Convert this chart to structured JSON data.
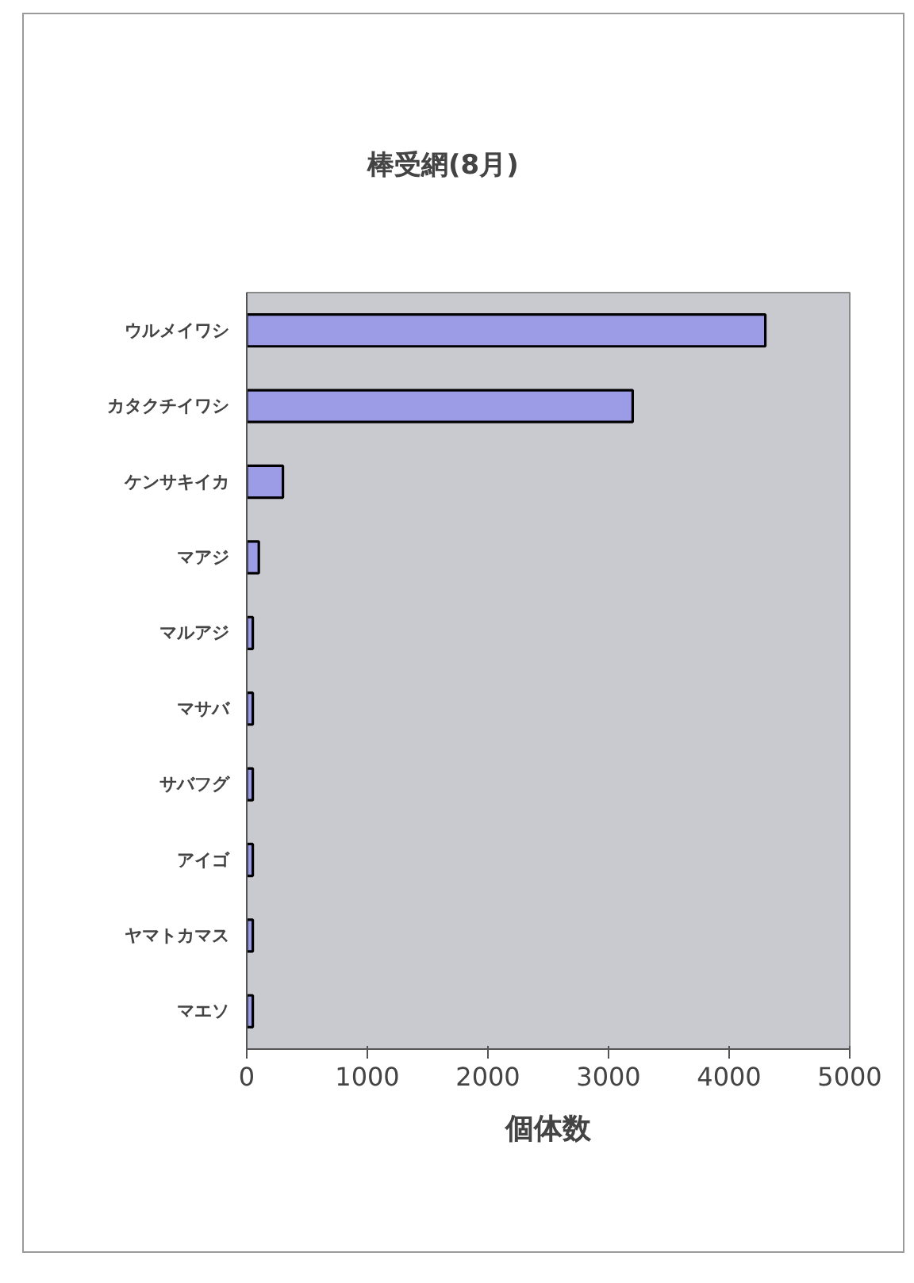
{
  "chart_data": {
    "type": "bar",
    "orientation": "horizontal",
    "title": "棒受網(8月)",
    "xlabel": "個体数",
    "categories": [
      "ウルメイワシ",
      "カタクチイワシ",
      "ケンサキイカ",
      "マアジ",
      "マルアジ",
      "マサバ",
      "サバフグ",
      "アイゴ",
      "ヤマトカマス",
      "マエソ"
    ],
    "values": [
      4300,
      3200,
      300,
      100,
      50,
      50,
      50,
      50,
      50,
      50
    ],
    "color": "#9c9ce6",
    "xlim": [
      0,
      5000
    ],
    "xticks": [
      0,
      1000,
      2000,
      3000,
      4000,
      5000
    ]
  }
}
